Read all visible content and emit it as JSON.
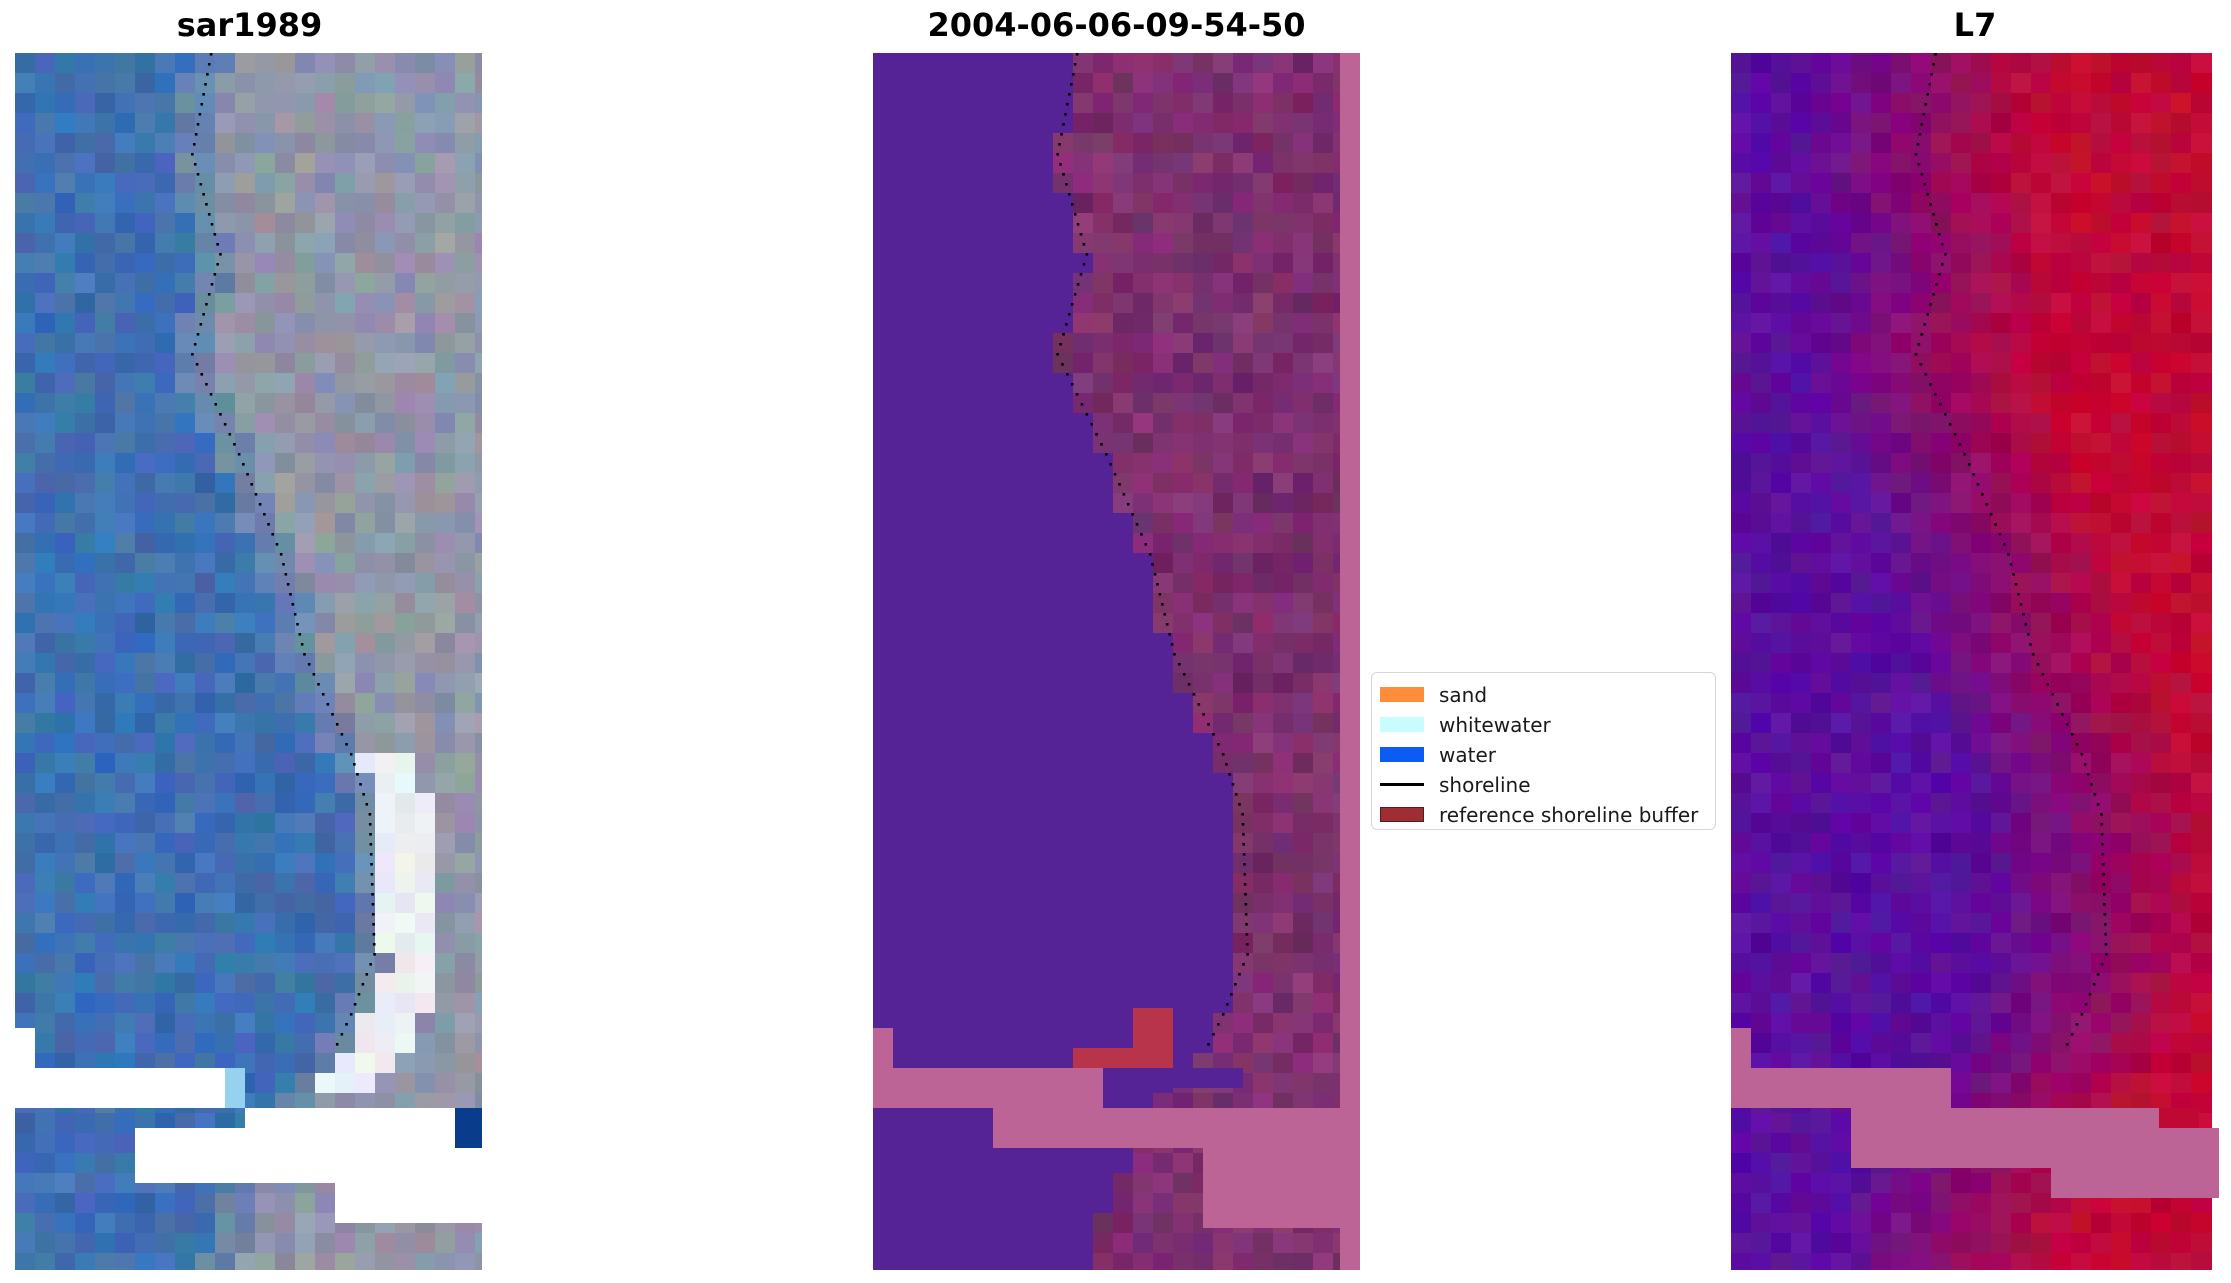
{
  "panels": [
    {
      "title": "sar1989",
      "kind": "rgb"
    },
    {
      "title": "2004-06-06-09-54-50",
      "kind": "classified"
    },
    {
      "title": "L7",
      "kind": "ndwi"
    }
  ],
  "legend": {
    "items": [
      {
        "label": "sand",
        "color": "#ff8c3a",
        "type": "patch"
      },
      {
        "label": "whitewater",
        "color": "#c8fcff",
        "type": "patch"
      },
      {
        "label": "water",
        "color": "#0a5cf5",
        "type": "patch"
      },
      {
        "label": "shoreline",
        "color": "#000000",
        "type": "line"
      },
      {
        "label": "reference shoreline buffer",
        "color": "#9e2e33",
        "type": "patch",
        "edge": "#5a1a1c"
      }
    ]
  },
  "colors": {
    "nodata_pink": "#bc6496",
    "water_purple": "#562397",
    "buffer_red": "#b8344a",
    "ocean_blue": "#3a6fae",
    "land_gray": "#9a9aa8",
    "ndwi_land": "#c00835",
    "ndwi_water": "#5a0f9e"
  }
}
